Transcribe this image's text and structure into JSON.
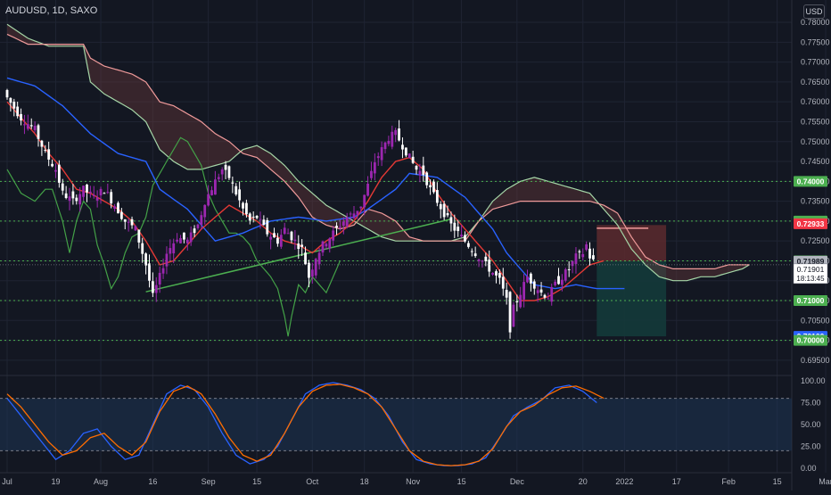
{
  "symbol_label": "AUDUSD, 1D, SAXO",
  "currency_button": "USD",
  "colors": {
    "background": "#131722",
    "grid": "#1f2433",
    "axis_text": "#b2b5be",
    "up_candle": "#9c27b0",
    "down_candle": "#ffffff",
    "tenkan": "#e53935",
    "kijun": "#2962ff",
    "chikou": "#43a047",
    "span_a": "#a5d6a7",
    "span_b": "#ef9a9a",
    "level_line": "#4caf50",
    "trendline": "#4caf50",
    "stoch_k": "#2962ff",
    "stoch_d": "#ff6d00",
    "stoch_band": "#1e3553",
    "stop_zone": "#5c2a2e",
    "target_zone": "#143a3a"
  },
  "price_axis": {
    "ticks": [
      "0.78000",
      "0.77500",
      "0.77000",
      "0.76500",
      "0.76000",
      "0.75500",
      "0.75000",
      "0.74500",
      "0.74000",
      "0.73500",
      "0.73000",
      "0.72500",
      "0.72000",
      "0.71500",
      "0.71000",
      "0.70500",
      "0.70000",
      "0.69500"
    ],
    "min": 0.6925,
    "max": 0.7845
  },
  "price_badges": [
    {
      "text": "0.74000",
      "value": 0.74,
      "color": "#4caf50"
    },
    {
      "text": "0.73000",
      "value": 0.73,
      "color": "#4caf50"
    },
    {
      "text": "0.72933",
      "value": 0.72933,
      "color": "#f23645"
    },
    {
      "text": "0.72000",
      "value": 0.72,
      "color": "#4caf50"
    },
    {
      "text": "0.71989",
      "value": 0.71989,
      "color": "#b2b5be"
    },
    {
      "text": "0.71000",
      "value": 0.71,
      "color": "#4caf50"
    },
    {
      "text": "0.70100",
      "value": 0.701,
      "color": "#2962ff"
    },
    {
      "text": "0.70000",
      "value": 0.7,
      "color": "#4caf50"
    }
  ],
  "current_price": {
    "value": "0.71901",
    "countdown": "18:13:45"
  },
  "horizontal_levels": [
    0.74,
    0.73,
    0.72,
    0.71,
    0.7
  ],
  "stoch_axis": {
    "ticks": [
      "100.00",
      "75.00",
      "50.00",
      "25.00",
      "0.00"
    ],
    "upper": 80,
    "lower": 20
  },
  "time_axis": {
    "labels": [
      {
        "text": "Jul",
        "day": 0
      },
      {
        "text": "19",
        "day": 14
      },
      {
        "text": "Aug",
        "day": 27
      },
      {
        "text": "16",
        "day": 42
      },
      {
        "text": "Sep",
        "day": 58
      },
      {
        "text": "15",
        "day": 72
      },
      {
        "text": "Oct",
        "day": 88
      },
      {
        "text": "18",
        "day": 103
      },
      {
        "text": "Nov",
        "day": 117
      },
      {
        "text": "15",
        "day": 131
      },
      {
        "text": "Dec",
        "day": 147
      },
      {
        "text": "20",
        "day": 166
      },
      {
        "text": "2022",
        "day": 178
      },
      {
        "text": "17",
        "day": 193
      },
      {
        "text": "Feb",
        "day": 208
      },
      {
        "text": "15",
        "day": 222
      },
      {
        "text": "Mar",
        "day": 236
      }
    ]
  },
  "chart_data": {
    "type": "candlestick",
    "title": "AUDUSD, 1D, SAXO",
    "ylim": [
      0.6925,
      0.7845
    ],
    "close_anchors": [
      [
        0,
        0.761
      ],
      [
        4,
        0.756
      ],
      [
        8,
        0.753
      ],
      [
        11,
        0.747
      ],
      [
        14,
        0.743
      ],
      [
        16,
        0.737
      ],
      [
        19,
        0.735
      ],
      [
        22,
        0.738
      ],
      [
        25,
        0.736
      ],
      [
        28,
        0.738
      ],
      [
        31,
        0.734
      ],
      [
        34,
        0.73
      ],
      [
        37,
        0.728
      ],
      [
        40,
        0.719
      ],
      [
        42,
        0.711
      ],
      [
        44,
        0.716
      ],
      [
        46,
        0.722
      ],
      [
        49,
        0.726
      ],
      [
        52,
        0.725
      ],
      [
        55,
        0.729
      ],
      [
        57,
        0.735
      ],
      [
        60,
        0.74
      ],
      [
        62,
        0.743
      ],
      [
        64,
        0.741
      ],
      [
        66,
        0.737
      ],
      [
        68,
        0.733
      ],
      [
        70,
        0.73
      ],
      [
        72,
        0.731
      ],
      [
        75,
        0.727
      ],
      [
        78,
        0.725
      ],
      [
        80,
        0.728
      ],
      [
        82,
        0.726
      ],
      [
        85,
        0.723
      ],
      [
        87,
        0.716
      ],
      [
        89,
        0.721
      ],
      [
        91,
        0.724
      ],
      [
        93,
        0.726
      ],
      [
        95,
        0.728
      ],
      [
        98,
        0.731
      ],
      [
        100,
        0.732
      ],
      [
        102,
        0.734
      ],
      [
        104,
        0.739
      ],
      [
        106,
        0.745
      ],
      [
        108,
        0.748
      ],
      [
        110,
        0.751
      ],
      [
        112,
        0.752
      ],
      [
        114,
        0.749
      ],
      [
        116,
        0.746
      ],
      [
        118,
        0.743
      ],
      [
        120,
        0.742
      ],
      [
        122,
        0.738
      ],
      [
        124,
        0.735
      ],
      [
        126,
        0.732
      ],
      [
        128,
        0.729
      ],
      [
        130,
        0.727
      ],
      [
        132,
        0.725
      ],
      [
        134,
        0.723
      ],
      [
        136,
        0.721
      ],
      [
        138,
        0.719
      ],
      [
        140,
        0.717
      ],
      [
        142,
        0.715
      ],
      [
        144,
        0.71
      ],
      [
        145,
        0.703
      ],
      [
        146,
        0.708
      ],
      [
        148,
        0.712
      ],
      [
        150,
        0.716
      ],
      [
        152,
        0.714
      ],
      [
        154,
        0.712
      ],
      [
        156,
        0.711
      ],
      [
        158,
        0.714
      ],
      [
        160,
        0.716
      ],
      [
        162,
        0.718
      ],
      [
        164,
        0.721
      ],
      [
        166,
        0.722
      ],
      [
        167,
        0.724
      ],
      [
        168,
        0.721
      ],
      [
        169,
        0.7199
      ]
    ],
    "chikou_anchors": [
      [
        0,
        0.743
      ],
      [
        4,
        0.737
      ],
      [
        8,
        0.735
      ],
      [
        11,
        0.738
      ],
      [
        13,
        0.738
      ],
      [
        16,
        0.73
      ],
      [
        18,
        0.722
      ],
      [
        20,
        0.73
      ],
      [
        22,
        0.735
      ],
      [
        24,
        0.733
      ],
      [
        26,
        0.724
      ],
      [
        28,
        0.719
      ],
      [
        30,
        0.713
      ],
      [
        32,
        0.716
      ],
      [
        34,
        0.722
      ],
      [
        36,
        0.726
      ],
      [
        38,
        0.727
      ],
      [
        40,
        0.731
      ],
      [
        42,
        0.739
      ],
      [
        44,
        0.742
      ],
      [
        46,
        0.745
      ],
      [
        48,
        0.748
      ],
      [
        50,
        0.751
      ],
      [
        52,
        0.75
      ],
      [
        54,
        0.747
      ],
      [
        56,
        0.744
      ],
      [
        58,
        0.737
      ],
      [
        60,
        0.733
      ],
      [
        62,
        0.73
      ],
      [
        64,
        0.727
      ],
      [
        66,
        0.727
      ],
      [
        68,
        0.726
      ],
      [
        70,
        0.724
      ],
      [
        72,
        0.72
      ],
      [
        74,
        0.718
      ],
      [
        76,
        0.716
      ],
      [
        78,
        0.713
      ],
      [
        80,
        0.706
      ],
      [
        81,
        0.701
      ],
      [
        82,
        0.706
      ],
      [
        84,
        0.714
      ],
      [
        86,
        0.712
      ],
      [
        88,
        0.716
      ],
      [
        90,
        0.714
      ],
      [
        92,
        0.712
      ],
      [
        94,
        0.716
      ],
      [
        96,
        0.72
      ]
    ],
    "cloud_anchors": [
      [
        0,
        0.7795,
        0.777
      ],
      [
        6,
        0.776,
        0.7745
      ],
      [
        12,
        0.774,
        0.7745
      ],
      [
        18,
        0.774,
        0.7745
      ],
      [
        22,
        0.774,
        0.7745
      ],
      [
        24,
        0.765,
        0.771
      ],
      [
        28,
        0.762,
        0.769
      ],
      [
        32,
        0.76,
        0.768
      ],
      [
        36,
        0.758,
        0.767
      ],
      [
        40,
        0.755,
        0.765
      ],
      [
        44,
        0.748,
        0.76
      ],
      [
        48,
        0.745,
        0.759
      ],
      [
        52,
        0.743,
        0.757
      ],
      [
        56,
        0.743,
        0.755
      ],
      [
        60,
        0.744,
        0.752
      ],
      [
        64,
        0.745,
        0.75
      ],
      [
        68,
        0.748,
        0.747
      ],
      [
        72,
        0.749,
        0.746
      ],
      [
        76,
        0.747,
        0.743
      ],
      [
        80,
        0.744,
        0.74
      ],
      [
        84,
        0.74,
        0.736
      ],
      [
        88,
        0.737,
        0.731
      ],
      [
        92,
        0.734,
        0.729
      ],
      [
        96,
        0.732,
        0.728
      ],
      [
        100,
        0.73,
        0.729
      ],
      [
        104,
        0.728,
        0.733
      ],
      [
        108,
        0.726,
        0.732
      ],
      [
        112,
        0.725,
        0.73
      ],
      [
        116,
        0.725,
        0.726
      ],
      [
        120,
        0.725,
        0.725
      ],
      [
        124,
        0.725,
        0.725
      ],
      [
        128,
        0.725,
        0.725
      ],
      [
        132,
        0.726,
        0.725
      ],
      [
        136,
        0.73,
        0.73
      ],
      [
        140,
        0.735,
        0.733
      ],
      [
        144,
        0.738,
        0.734
      ],
      [
        148,
        0.74,
        0.735
      ],
      [
        152,
        0.741,
        0.735
      ],
      [
        156,
        0.74,
        0.735
      ],
      [
        160,
        0.739,
        0.735
      ],
      [
        164,
        0.738,
        0.735
      ],
      [
        168,
        0.737,
        0.735
      ],
      [
        172,
        0.733,
        0.734
      ],
      [
        176,
        0.729,
        0.732
      ],
      [
        180,
        0.723,
        0.726
      ],
      [
        184,
        0.719,
        0.721
      ],
      [
        188,
        0.716,
        0.719
      ],
      [
        192,
        0.715,
        0.718
      ],
      [
        196,
        0.715,
        0.718
      ],
      [
        200,
        0.716,
        0.718
      ],
      [
        204,
        0.716,
        0.718
      ],
      [
        208,
        0.717,
        0.719
      ],
      [
        212,
        0.718,
        0.719
      ],
      [
        214,
        0.719,
        0.719
      ]
    ],
    "tenkan_anchors": [
      [
        0,
        0.76
      ],
      [
        4,
        0.756
      ],
      [
        8,
        0.752
      ],
      [
        12,
        0.747
      ],
      [
        16,
        0.743
      ],
      [
        20,
        0.738
      ],
      [
        24,
        0.737
      ],
      [
        28,
        0.735
      ],
      [
        32,
        0.733
      ],
      [
        36,
        0.73
      ],
      [
        40,
        0.725
      ],
      [
        44,
        0.719
      ],
      [
        48,
        0.72
      ],
      [
        52,
        0.724
      ],
      [
        56,
        0.728
      ],
      [
        60,
        0.731
      ],
      [
        64,
        0.734
      ],
      [
        68,
        0.732
      ],
      [
        72,
        0.73
      ],
      [
        76,
        0.727
      ],
      [
        80,
        0.725
      ],
      [
        84,
        0.724
      ],
      [
        88,
        0.722
      ],
      [
        92,
        0.725
      ],
      [
        96,
        0.727
      ],
      [
        100,
        0.73
      ],
      [
        104,
        0.735
      ],
      [
        108,
        0.741
      ],
      [
        112,
        0.745
      ],
      [
        116,
        0.746
      ],
      [
        120,
        0.743
      ],
      [
        124,
        0.737
      ],
      [
        128,
        0.732
      ],
      [
        132,
        0.728
      ],
      [
        136,
        0.724
      ],
      [
        140,
        0.72
      ],
      [
        144,
        0.715
      ],
      [
        148,
        0.71
      ],
      [
        152,
        0.71
      ],
      [
        156,
        0.711
      ],
      [
        160,
        0.713
      ],
      [
        164,
        0.716
      ],
      [
        168,
        0.719
      ],
      [
        172,
        0.72
      ]
    ],
    "kijun_anchors": [
      [
        0,
        0.766
      ],
      [
        8,
        0.764
      ],
      [
        16,
        0.759
      ],
      [
        24,
        0.752
      ],
      [
        32,
        0.747
      ],
      [
        40,
        0.745
      ],
      [
        44,
        0.738
      ],
      [
        52,
        0.733
      ],
      [
        60,
        0.725
      ],
      [
        68,
        0.727
      ],
      [
        76,
        0.73
      ],
      [
        84,
        0.731
      ],
      [
        92,
        0.73
      ],
      [
        100,
        0.731
      ],
      [
        104,
        0.733
      ],
      [
        112,
        0.738
      ],
      [
        116,
        0.742
      ],
      [
        124,
        0.741
      ],
      [
        132,
        0.736
      ],
      [
        140,
        0.728
      ],
      [
        144,
        0.722
      ],
      [
        148,
        0.718
      ],
      [
        152,
        0.714
      ],
      [
        158,
        0.713
      ],
      [
        164,
        0.714
      ],
      [
        170,
        0.713
      ],
      [
        178,
        0.713
      ]
    ],
    "stoch_k_anchors": [
      [
        0,
        80
      ],
      [
        4,
        60
      ],
      [
        8,
        40
      ],
      [
        12,
        20
      ],
      [
        14,
        10
      ],
      [
        18,
        20
      ],
      [
        22,
        40
      ],
      [
        26,
        45
      ],
      [
        30,
        25
      ],
      [
        34,
        10
      ],
      [
        38,
        15
      ],
      [
        42,
        50
      ],
      [
        46,
        85
      ],
      [
        50,
        95
      ],
      [
        54,
        90
      ],
      [
        58,
        70
      ],
      [
        62,
        40
      ],
      [
        66,
        15
      ],
      [
        70,
        5
      ],
      [
        74,
        10
      ],
      [
        78,
        25
      ],
      [
        82,
        55
      ],
      [
        86,
        85
      ],
      [
        90,
        95
      ],
      [
        94,
        98
      ],
      [
        98,
        95
      ],
      [
        102,
        90
      ],
      [
        106,
        80
      ],
      [
        110,
        60
      ],
      [
        114,
        30
      ],
      [
        118,
        10
      ],
      [
        122,
        5
      ],
      [
        126,
        3
      ],
      [
        130,
        3
      ],
      [
        134,
        5
      ],
      [
        138,
        12
      ],
      [
        142,
        35
      ],
      [
        146,
        60
      ],
      [
        150,
        70
      ],
      [
        154,
        78
      ],
      [
        158,
        92
      ],
      [
        162,
        95
      ],
      [
        166,
        88
      ],
      [
        170,
        75
      ]
    ],
    "stoch_d_anchors": [
      [
        0,
        85
      ],
      [
        4,
        70
      ],
      [
        8,
        50
      ],
      [
        12,
        30
      ],
      [
        16,
        15
      ],
      [
        20,
        20
      ],
      [
        24,
        35
      ],
      [
        28,
        40
      ],
      [
        32,
        25
      ],
      [
        36,
        15
      ],
      [
        40,
        30
      ],
      [
        44,
        65
      ],
      [
        48,
        88
      ],
      [
        52,
        94
      ],
      [
        56,
        85
      ],
      [
        60,
        62
      ],
      [
        64,
        35
      ],
      [
        68,
        15
      ],
      [
        72,
        8
      ],
      [
        76,
        15
      ],
      [
        80,
        40
      ],
      [
        84,
        70
      ],
      [
        88,
        88
      ],
      [
        92,
        95
      ],
      [
        96,
        96
      ],
      [
        100,
        92
      ],
      [
        104,
        85
      ],
      [
        108,
        70
      ],
      [
        112,
        45
      ],
      [
        116,
        20
      ],
      [
        120,
        8
      ],
      [
        124,
        4
      ],
      [
        128,
        3
      ],
      [
        132,
        4
      ],
      [
        136,
        8
      ],
      [
        140,
        22
      ],
      [
        144,
        48
      ],
      [
        148,
        65
      ],
      [
        152,
        72
      ],
      [
        156,
        84
      ],
      [
        160,
        92
      ],
      [
        164,
        94
      ],
      [
        168,
        88
      ],
      [
        172,
        80
      ]
    ],
    "trendline": {
      "start": {
        "day": 40,
        "price": 0.7122
      },
      "end": {
        "day": 128,
        "price": 0.7305
      }
    },
    "position_tool": {
      "start_day": 170,
      "end_day": 190,
      "stop": 0.729,
      "entry": 0.7199,
      "target": 0.701
    }
  }
}
